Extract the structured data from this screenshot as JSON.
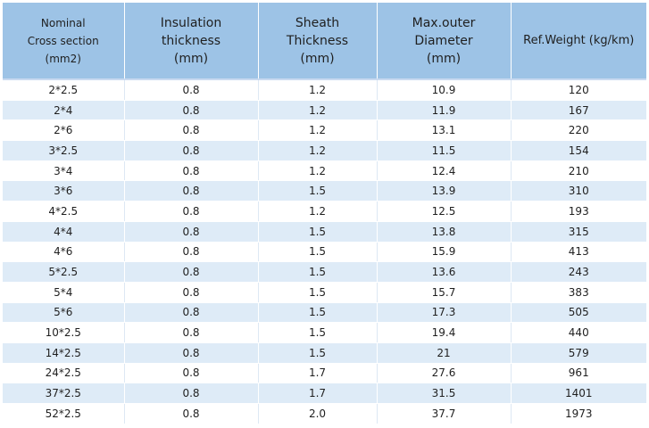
{
  "table": {
    "headers": [
      [
        "Nominal",
        "Cross section",
        "(mm2)"
      ],
      [
        "Insulation",
        "thickness",
        "(mm)"
      ],
      [
        "Sheath",
        "Thickness",
        "(mm)"
      ],
      [
        "Max.outer",
        "Diameter",
        "(mm)"
      ],
      [
        "Ref.Weight (kg/km)"
      ]
    ],
    "rows": [
      [
        "2*2.5",
        "0.8",
        "1.2",
        "10.9",
        "120"
      ],
      [
        "2*4",
        "0.8",
        "1.2",
        "11.9",
        "167"
      ],
      [
        "2*6",
        "0.8",
        "1.2",
        "13.1",
        "220"
      ],
      [
        "3*2.5",
        "0.8",
        "1.2",
        "11.5",
        "154"
      ],
      [
        "3*4",
        "0.8",
        "1.2",
        "12.4",
        "210"
      ],
      [
        "3*6",
        "0.8",
        "1.5",
        "13.9",
        "310"
      ],
      [
        "4*2.5",
        "0.8",
        "1.2",
        "12.5",
        "193"
      ],
      [
        "4*4",
        "0.8",
        "1.5",
        "13.8",
        "315"
      ],
      [
        "4*6",
        "0.8",
        "1.5",
        "15.9",
        "413"
      ],
      [
        "5*2.5",
        "0.8",
        "1.5",
        "13.6",
        "243"
      ],
      [
        "5*4",
        "0.8",
        "1.5",
        "15.7",
        "383"
      ],
      [
        "5*6",
        "0.8",
        "1.5",
        "17.3",
        "505"
      ],
      [
        "10*2.5",
        "0.8",
        "1.5",
        "19.4",
        "440"
      ],
      [
        "14*2.5",
        "0.8",
        "1.5",
        "21",
        "579"
      ],
      [
        "24*2.5",
        "0.8",
        "1.7",
        "27.6",
        "961"
      ],
      [
        "37*2.5",
        "0.8",
        "1.7",
        "31.5",
        "1401"
      ],
      [
        "52*2.5",
        "0.8",
        "2.0",
        "37.7",
        "1973"
      ]
    ]
  },
  "colors": {
    "header_bg": "#9dc3e6",
    "stripe_bg": "#deebf7",
    "row_bg": "#ffffff"
  }
}
